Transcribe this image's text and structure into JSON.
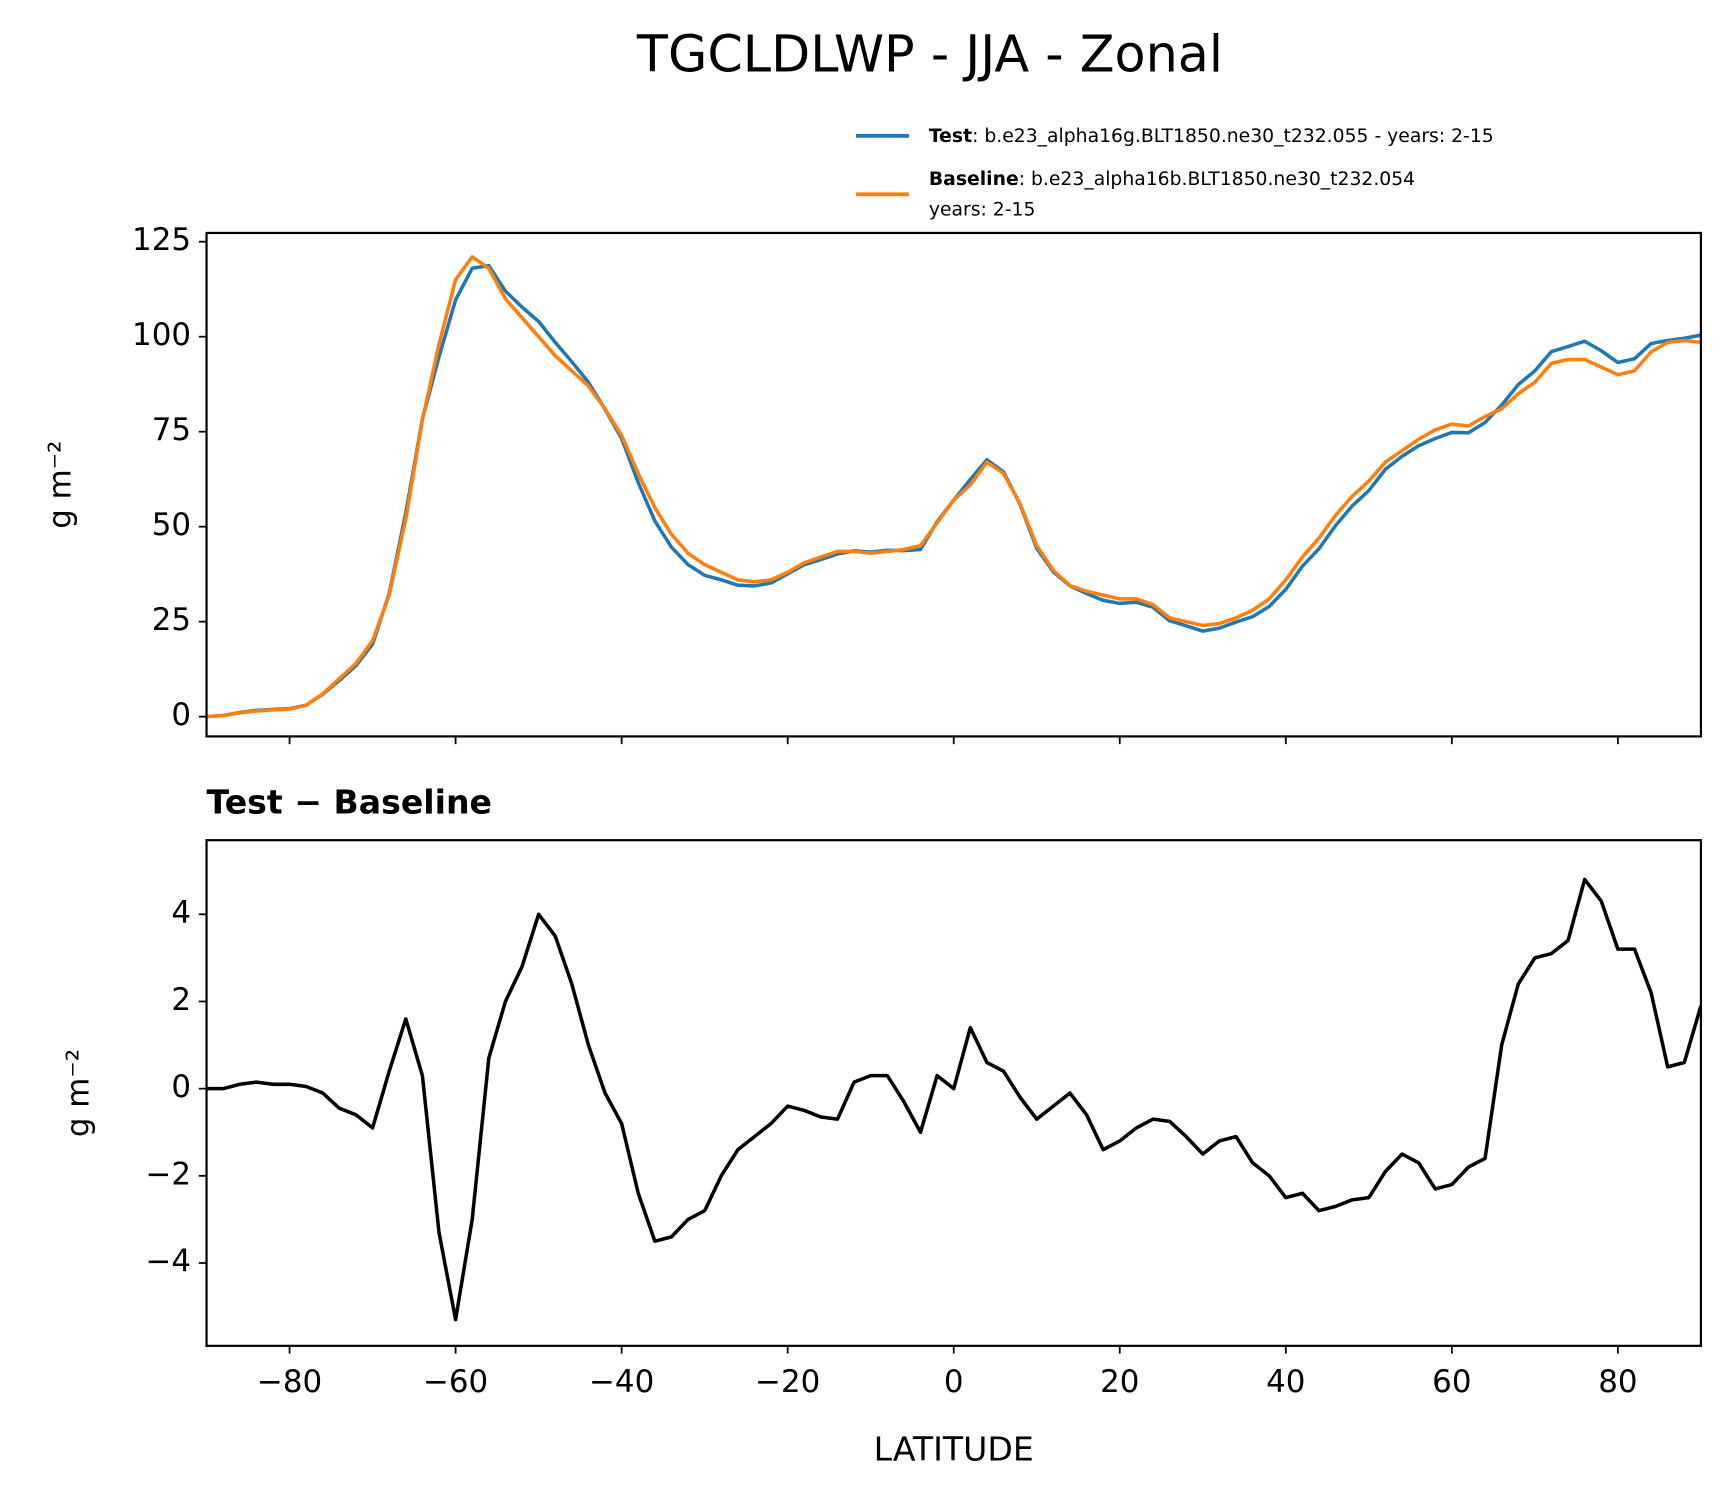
{
  "chart_data": [
    {
      "type": "line",
      "title": "TGCLDLWP - JJA - Zonal",
      "ylabel": "g m⁻²",
      "x": [
        -90,
        -88,
        -86,
        -84,
        -82,
        -80,
        -78,
        -76,
        -74,
        -72,
        -70,
        -68,
        -66,
        -64,
        -62,
        -60,
        -58,
        -56,
        -54,
        -52,
        -50,
        -48,
        -46,
        -44,
        -42,
        -40,
        -38,
        -36,
        -34,
        -32,
        -30,
        -28,
        -26,
        -24,
        -22,
        -20,
        -18,
        -16,
        -14,
        -12,
        -10,
        -8,
        -6,
        -4,
        -2,
        0,
        2,
        4,
        6,
        8,
        10,
        12,
        14,
        16,
        18,
        20,
        22,
        24,
        26,
        28,
        30,
        32,
        34,
        36,
        38,
        40,
        42,
        44,
        46,
        48,
        50,
        52,
        54,
        56,
        58,
        60,
        62,
        64,
        66,
        68,
        70,
        72,
        74,
        76,
        78,
        80,
        82,
        84,
        86,
        88,
        90
      ],
      "series": [
        {
          "name": "Test",
          "label": ": b.e23_alpha16g.BLT1850.ne30_t232.055 - years: 2-15",
          "color": "#1f77b4",
          "values": [
            0,
            0.3,
            1.1,
            1.65,
            1.9,
            2.1,
            3.05,
            5.9,
            9.55,
            13.4,
            19.1,
            32.4,
            53.6,
            78.3,
            94.7,
            109.7,
            118,
            118.7,
            112,
            107.8,
            104,
            98.5,
            93.4,
            88,
            80.9,
            73.2,
            61.6,
            51.5,
            44.6,
            40,
            37.2,
            36,
            34.6,
            34.4,
            35.2,
            37.6,
            40,
            41.35,
            42.8,
            43.65,
            43.3,
            43.8,
            43.7,
            44,
            51.3,
            57,
            62.4,
            67.6,
            64.4,
            55.8,
            44.3,
            38.1,
            34.4,
            32.4,
            30.6,
            29.8,
            30.1,
            28.8,
            25.25,
            23.9,
            22.5,
            23.3,
            24.9,
            26.3,
            29,
            33.5,
            39.6,
            44.2,
            50.3,
            55.45,
            59.5,
            65.1,
            68.5,
            71.3,
            73.2,
            74.8,
            74.7,
            77.4,
            82,
            87.4,
            91,
            96.1,
            97.4,
            98.8,
            96.3,
            93.2,
            94.2,
            98.2,
            99,
            99.6,
            100.4
          ]
        },
        {
          "name": "Baseline",
          "label": [
            ": b.e23_alpha16b.BLT1850.ne30_t232.054",
            "years: 2-15"
          ],
          "color": "#ff7f0e",
          "values": [
            0,
            0.3,
            1,
            1.5,
            1.8,
            2,
            3,
            6,
            10,
            14,
            20,
            32,
            52,
            78,
            98,
            115,
            121,
            118,
            110,
            105,
            100,
            95,
            91,
            87,
            81,
            74,
            64,
            55,
            48,
            43,
            40,
            38,
            36,
            35.5,
            36,
            38,
            40.5,
            42,
            43.5,
            43.5,
            43,
            43.5,
            44,
            45,
            51,
            57,
            61,
            67,
            64,
            56,
            45,
            38.5,
            34.5,
            33,
            32,
            31,
            31,
            29.5,
            26,
            25,
            24,
            24.5,
            26,
            28,
            31,
            36,
            42,
            47,
            53,
            58,
            62,
            67,
            70,
            73,
            75.5,
            77,
            76.5,
            79,
            81,
            85,
            88,
            93,
            94,
            94,
            92,
            90,
            91,
            96,
            98.5,
            99,
            98.5
          ]
        }
      ],
      "xlim": [
        -90,
        90
      ],
      "xticks": [
        -80,
        -60,
        -40,
        -20,
        0,
        20,
        40,
        60,
        80
      ],
      "ylim": [
        -5.2,
        127.3
      ],
      "yticks": [
        0,
        25,
        50,
        75,
        100,
        125
      ]
    },
    {
      "type": "line",
      "title": "Test − Baseline",
      "ylabel": "g m⁻²",
      "xlabel": "LATITUDE",
      "x": [
        -90,
        -88,
        -86,
        -84,
        -82,
        -80,
        -78,
        -76,
        -74,
        -72,
        -70,
        -68,
        -66,
        -64,
        -62,
        -60,
        -58,
        -56,
        -54,
        -52,
        -50,
        -48,
        -46,
        -44,
        -42,
        -40,
        -38,
        -36,
        -34,
        -32,
        -30,
        -28,
        -26,
        -24,
        -22,
        -20,
        -18,
        -16,
        -14,
        -12,
        -10,
        -8,
        -6,
        -4,
        -2,
        0,
        2,
        4,
        6,
        8,
        10,
        12,
        14,
        16,
        18,
        20,
        22,
        24,
        26,
        28,
        30,
        32,
        34,
        36,
        38,
        40,
        42,
        44,
        46,
        48,
        50,
        52,
        54,
        56,
        58,
        60,
        62,
        64,
        66,
        68,
        70,
        72,
        74,
        76,
        78,
        80,
        82,
        84,
        86,
        88,
        90
      ],
      "series": [
        {
          "color": "#000000",
          "values": [
            0,
            0,
            0.1,
            0.15,
            0.1,
            0.1,
            0.05,
            -0.1,
            -0.45,
            -0.6,
            -0.9,
            0.4,
            1.6,
            0.3,
            -3.3,
            -5.3,
            -3,
            0.7,
            2,
            2.8,
            4,
            3.5,
            2.4,
            1,
            -0.1,
            -0.8,
            -2.4,
            -3.5,
            -3.4,
            -3,
            -2.8,
            -2,
            -1.4,
            -1.1,
            -0.8,
            -0.4,
            -0.5,
            -0.65,
            -0.7,
            0.15,
            0.3,
            0.3,
            -0.3,
            -1,
            0.3,
            0,
            1.4,
            0.6,
            0.4,
            -0.2,
            -0.7,
            -0.4,
            -0.1,
            -0.6,
            -1.4,
            -1.2,
            -0.9,
            -0.7,
            -0.75,
            -1.1,
            -1.5,
            -1.2,
            -1.1,
            -1.7,
            -2,
            -2.5,
            -2.4,
            -2.8,
            -2.7,
            -2.55,
            -2.5,
            -1.9,
            -1.5,
            -1.7,
            -2.3,
            -2.2,
            -1.8,
            -1.6,
            1,
            2.4,
            3,
            3.1,
            3.4,
            4.8,
            4.3,
            3.2,
            3.2,
            2.2,
            0.5,
            0.6,
            1.9
          ]
        }
      ],
      "xlim": [
        -90,
        90
      ],
      "xticks": [
        {
          "value": -80,
          "label": "−80"
        },
        {
          "value": -60,
          "label": "−60"
        },
        {
          "value": -40,
          "label": "−40"
        },
        {
          "value": -20,
          "label": "−20"
        },
        0,
        20,
        40,
        60,
        80
      ],
      "ylim": [
        -5.9,
        5.7
      ],
      "yticks": [
        {
          "value": -4,
          "label": "−4"
        },
        {
          "value": -2,
          "label": "−2"
        },
        0,
        2,
        4
      ]
    }
  ]
}
